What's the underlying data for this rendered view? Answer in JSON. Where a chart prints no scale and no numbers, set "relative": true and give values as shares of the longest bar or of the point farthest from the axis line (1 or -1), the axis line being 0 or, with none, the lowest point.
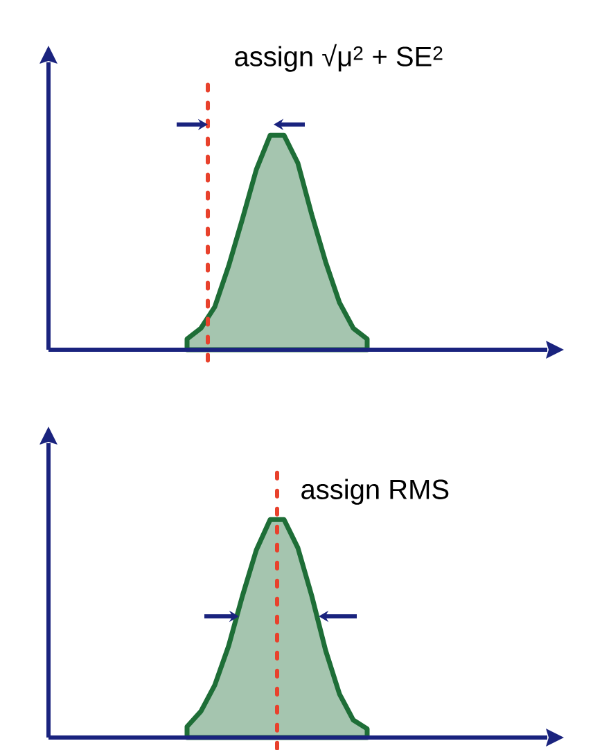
{
  "chart_data": [
    {
      "type": "area",
      "relative": true,
      "color": "#1e6e37",
      "categories": [
        null,
        null,
        null,
        null,
        null,
        null,
        null,
        null,
        null,
        null,
        null,
        null,
        null,
        null
      ],
      "values": [
        0.05,
        0.1,
        0.2,
        0.39,
        0.61,
        0.84,
        1,
        1,
        0.87,
        0.63,
        0.41,
        0.22,
        0.1,
        0.05
      ],
      "annotations": [
        "assign √μ$^{2}$ + SE$^{2}$"
      ]
    },
    {
      "type": "area",
      "relative": true,
      "color": "#1e6e37",
      "categories": [
        null,
        null,
        null,
        null,
        null,
        null,
        null,
        null,
        null,
        null,
        null,
        null,
        null,
        null
      ],
      "values": [
        0.05,
        0.12,
        0.24,
        0.42,
        0.65,
        0.86,
        1,
        1,
        0.87,
        0.65,
        0.4,
        0.2,
        0.08,
        0.04
      ],
      "annotations": [
        "assign RMS"
      ]
    }
  ]
}
